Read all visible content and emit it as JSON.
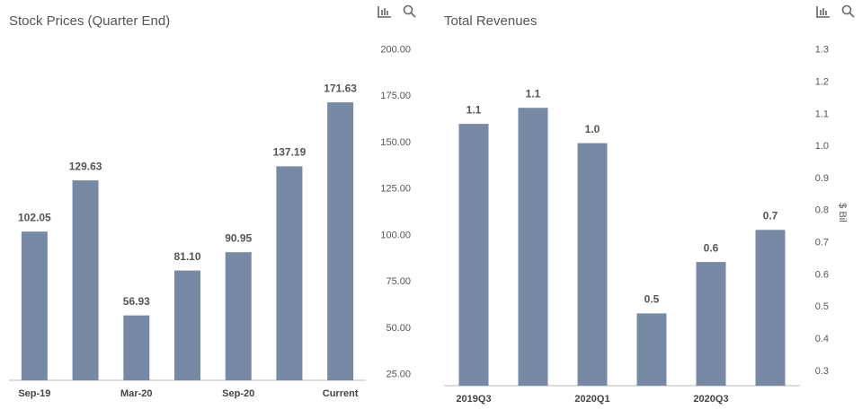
{
  "chart_data": [
    {
      "type": "bar",
      "title": "Stock Prices (Quarter End)",
      "categories": [
        "Sep-19",
        null,
        "Mar-20",
        null,
        "Sep-20",
        null,
        "Current"
      ],
      "values": [
        102.05,
        129.63,
        56.93,
        81.1,
        90.95,
        137.19,
        171.63
      ],
      "value_labels": [
        "102.05",
        "129.63",
        "56.93",
        "81.10",
        "90.95",
        "137.19",
        "171.63"
      ],
      "color": "#7789a5",
      "ylim": [
        22,
        205
      ],
      "yticks": [
        {
          "value": 25,
          "label": "25.00"
        },
        {
          "value": 50,
          "label": "50.00"
        },
        {
          "value": 75,
          "label": "75.00"
        },
        {
          "value": 100,
          "label": "100.00"
        },
        {
          "value": 125,
          "label": "125.00"
        },
        {
          "value": 150,
          "label": "150.00"
        },
        {
          "value": 175,
          "label": "175.00"
        },
        {
          "value": 200,
          "label": "200.00"
        }
      ],
      "grid": false
    },
    {
      "type": "bar",
      "title": "Total Revenues",
      "y_label": "$ Bil",
      "categories": [
        "2019Q3",
        null,
        "2020Q1",
        null,
        "2020Q3",
        null
      ],
      "values": [
        1.07,
        1.12,
        1.01,
        0.48,
        0.64,
        0.74
      ],
      "value_labels": [
        "1.1",
        "1.1",
        "1.0",
        "0.5",
        "0.6",
        "0.7"
      ],
      "color": "#7789a5",
      "ylim": [
        0.255,
        1.33
      ],
      "yticks": [
        0.3,
        0.4,
        0.5,
        0.6,
        0.7,
        0.8,
        0.9,
        {
          "value": 1,
          "label": "1.0"
        },
        1.1,
        1.2,
        1.3
      ],
      "grid": false
    }
  ]
}
